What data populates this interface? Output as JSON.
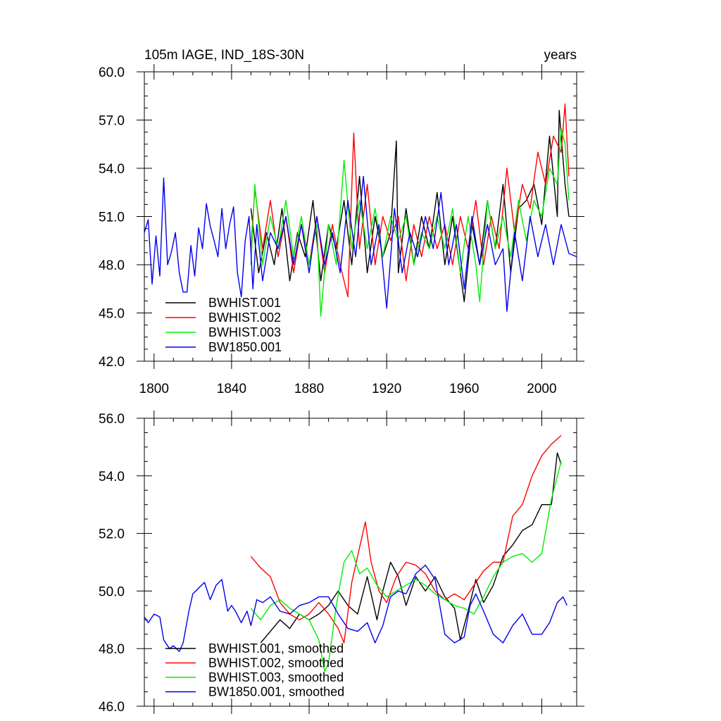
{
  "chart_data": [
    {
      "type": "line",
      "title": "105m IAGE, IND_18S-30N",
      "right_title": "years",
      "xlim": [
        1795,
        2018
      ],
      "ylim": [
        42,
        60
      ],
      "x_ticks": [
        1800,
        1840,
        1880,
        1920,
        1960,
        2000
      ],
      "x_tick_labels": [
        "1800",
        "1840",
        "1880",
        "1920",
        "1960",
        "2000"
      ],
      "y_ticks": [
        42,
        45,
        48,
        51,
        54,
        57,
        60
      ],
      "y_tick_labels": [
        "42.0",
        "45.0",
        "48.0",
        "51.0",
        "54.0",
        "57.0",
        "60.0"
      ],
      "legend_position": "bottom-left",
      "series": [
        {
          "name": "BWHIST.001",
          "color": "#000000",
          "x": [
            1850,
            1854,
            1858,
            1862,
            1866,
            1870,
            1874,
            1878,
            1882,
            1886,
            1890,
            1894,
            1898,
            1902,
            1906,
            1910,
            1914,
            1918,
            1922,
            1925,
            1926,
            1930,
            1934,
            1938,
            1942,
            1946,
            1950,
            1954,
            1958,
            1960,
            1964,
            1968,
            1972,
            1976,
            1980,
            1984,
            1988,
            1992,
            1996,
            2000,
            2004,
            2008,
            2009,
            2012,
            2014
          ],
          "y": [
            51.5,
            47.5,
            50,
            48,
            51.5,
            47,
            50,
            48.5,
            52,
            47,
            50.5,
            49,
            52,
            48,
            53.5,
            47.5,
            51,
            48.5,
            50,
            55.7,
            47.5,
            51.5,
            48,
            51,
            49,
            52.5,
            48,
            51,
            47.5,
            45.7,
            50.5,
            48,
            52,
            49,
            53,
            47.5,
            51.5,
            52,
            53,
            50.5,
            56,
            51,
            57.6,
            53,
            51
          ]
        },
        {
          "name": "BWHIST.002",
          "color": "#ff0000",
          "x": [
            1850,
            1852,
            1856,
            1860,
            1864,
            1868,
            1872,
            1876,
            1880,
            1884,
            1888,
            1892,
            1896,
            1900,
            1903,
            1906,
            1910,
            1914,
            1918,
            1922,
            1926,
            1930,
            1934,
            1938,
            1942,
            1946,
            1950,
            1954,
            1958,
            1962,
            1966,
            1970,
            1974,
            1978,
            1982,
            1986,
            1990,
            1994,
            1998,
            2002,
            2006,
            2010,
            2012,
            2014
          ],
          "y": [
            49,
            52.7,
            49,
            52,
            48.5,
            51,
            47.5,
            50.5,
            48,
            51,
            47.5,
            50.5,
            48,
            46,
            56.2,
            49,
            53,
            48,
            51,
            49.5,
            51,
            47,
            50.5,
            48.5,
            51,
            49,
            50.5,
            48,
            51,
            49,
            52,
            48,
            51,
            49,
            54,
            50,
            53,
            51.5,
            55,
            53,
            56,
            55,
            58,
            53.5
          ]
        },
        {
          "name": "BWHIST.003",
          "color": "#00ee00",
          "x": [
            1850,
            1852,
            1856,
            1860,
            1864,
            1868,
            1872,
            1876,
            1880,
            1884,
            1886,
            1890,
            1894,
            1898,
            1902,
            1906,
            1910,
            1914,
            1918,
            1922,
            1926,
            1930,
            1934,
            1938,
            1942,
            1946,
            1950,
            1954,
            1958,
            1962,
            1966,
            1968,
            1972,
            1976,
            1980,
            1984,
            1988,
            1992,
            1996,
            2000,
            2004,
            2008,
            2010,
            2012,
            2014
          ],
          "y": [
            48,
            53,
            48,
            51,
            49,
            52,
            48.5,
            51,
            48,
            50.5,
            44.8,
            50.5,
            48,
            54.5,
            49,
            52,
            49,
            51.5,
            48.5,
            51,
            49.5,
            51,
            48,
            50,
            49,
            51,
            49,
            51.5,
            47.5,
            51,
            48,
            45.7,
            52,
            49,
            51,
            48.5,
            52,
            49.5,
            52,
            51,
            54,
            53,
            56.5,
            55.5,
            52
          ]
        },
        {
          "name": "BW1850.001",
          "color": "#0000ee",
          "x": [
            1795,
            1797,
            1799,
            1801,
            1803,
            1805,
            1807,
            1809,
            1811,
            1813,
            1815,
            1817,
            1819,
            1821,
            1823,
            1825,
            1827,
            1829,
            1831,
            1833,
            1835,
            1837,
            1839,
            1841,
            1843,
            1845,
            1847,
            1849,
            1851,
            1853,
            1856,
            1860,
            1864,
            1868,
            1872,
            1876,
            1880,
            1884,
            1888,
            1892,
            1896,
            1900,
            1904,
            1908,
            1912,
            1916,
            1920,
            1924,
            1928,
            1932,
            1936,
            1940,
            1944,
            1948,
            1952,
            1956,
            1960,
            1964,
            1968,
            1972,
            1976,
            1980,
            1982,
            1986,
            1990,
            1994,
            1998,
            2002,
            2006,
            2010,
            2014,
            2018
          ],
          "y": [
            50,
            50.8,
            46.8,
            49.8,
            47.3,
            53.4,
            48,
            48.8,
            50,
            47.5,
            46.3,
            46.3,
            49.2,
            47.3,
            50.3,
            49,
            51.8,
            50.4,
            49.5,
            48.5,
            51.5,
            49,
            50.5,
            51.6,
            47.5,
            46,
            49.5,
            51,
            46.5,
            50.5,
            47,
            50,
            49,
            51,
            48,
            50.5,
            47.5,
            51,
            48,
            50,
            47.5,
            52,
            48.5,
            53.5,
            48,
            50.5,
            45.3,
            51.5,
            47.5,
            50,
            48.5,
            51,
            49,
            52.5,
            48,
            50.5,
            46.5,
            51,
            48,
            50.5,
            48,
            49,
            45.1,
            50,
            47,
            51,
            48.5,
            50.5,
            48,
            50.5,
            48.7,
            48.5
          ]
        }
      ]
    },
    {
      "type": "line",
      "xlim": [
        1795,
        2018
      ],
      "ylim": [
        46,
        56
      ],
      "x_ticks": [
        1800,
        1840,
        1880,
        1920,
        1960,
        2000
      ],
      "y_ticks": [
        46,
        48,
        50,
        52,
        54,
        56
      ],
      "y_tick_labels": [
        "46.0",
        "48.0",
        "50.0",
        "52.0",
        "54.0",
        "56.0"
      ],
      "legend_position": "bottom-left",
      "series": [
        {
          "name": "BWHIST.001, smoothed",
          "color": "#000000",
          "x": [
            1855,
            1860,
            1865,
            1870,
            1875,
            1880,
            1885,
            1890,
            1895,
            1900,
            1905,
            1910,
            1915,
            1918,
            1922,
            1926,
            1930,
            1935,
            1940,
            1945,
            1950,
            1955,
            1958,
            1962,
            1966,
            1970,
            1975,
            1980,
            1985,
            1990,
            1995,
            2000,
            2005,
            2008,
            2010
          ],
          "y": [
            48.2,
            48.6,
            49,
            48.7,
            49.2,
            49,
            49.2,
            49.5,
            50,
            49.5,
            49.2,
            50.5,
            49,
            50,
            51,
            50.5,
            49.5,
            50.5,
            50,
            50.5,
            49.8,
            49.4,
            48.3,
            49.3,
            50.4,
            49.6,
            50.2,
            51.2,
            51.6,
            52.1,
            52.3,
            53,
            53,
            54.8,
            54.4
          ]
        },
        {
          "name": "BWHIST.002, smoothed",
          "color": "#ff0000",
          "x": [
            1850,
            1855,
            1860,
            1865,
            1870,
            1875,
            1880,
            1885,
            1890,
            1895,
            1898,
            1902,
            1906,
            1909,
            1912,
            1916,
            1920,
            1925,
            1930,
            1935,
            1940,
            1945,
            1950,
            1955,
            1960,
            1965,
            1970,
            1975,
            1980,
            1985,
            1990,
            1995,
            2000,
            2005,
            2010
          ],
          "y": [
            51.2,
            50.8,
            50.5,
            49.6,
            49.2,
            49,
            49.2,
            49.6,
            49.2,
            48.7,
            48.2,
            50.3,
            51.5,
            52.4,
            51,
            50,
            49.6,
            50.5,
            51,
            50.9,
            50.6,
            50,
            49.7,
            49.9,
            49.7,
            50.2,
            50.7,
            51,
            51,
            52.6,
            53,
            54,
            54.7,
            55.1,
            55.4
          ]
        },
        {
          "name": "BWHIST.003, smoothed",
          "color": "#00ee00",
          "x": [
            1850,
            1855,
            1860,
            1865,
            1870,
            1875,
            1880,
            1885,
            1888,
            1890,
            1894,
            1898,
            1902,
            1906,
            1910,
            1915,
            1920,
            1925,
            1930,
            1935,
            1940,
            1945,
            1950,
            1955,
            1960,
            1965,
            1970,
            1975,
            1980,
            1985,
            1990,
            1995,
            2000,
            2005,
            2010
          ],
          "y": [
            49.4,
            49,
            49.5,
            49.7,
            49.4,
            49.2,
            49,
            48.3,
            47.2,
            47.5,
            49.5,
            51,
            51.4,
            50.6,
            50.8,
            50.2,
            49.8,
            50,
            50.2,
            50.4,
            50.2,
            49.9,
            49.7,
            49.5,
            49.4,
            49.2,
            49.8,
            50.5,
            51,
            51.2,
            51.3,
            51,
            51.3,
            53.2,
            54.5
          ]
        },
        {
          "name": "BW1850.001, smoothed",
          "color": "#0000ee",
          "x": [
            1795,
            1797,
            1800,
            1803,
            1805,
            1808,
            1810,
            1813,
            1815,
            1818,
            1820,
            1823,
            1826,
            1829,
            1832,
            1835,
            1838,
            1840,
            1842,
            1845,
            1848,
            1850,
            1853,
            1856,
            1860,
            1865,
            1870,
            1875,
            1880,
            1885,
            1890,
            1895,
            1900,
            1905,
            1910,
            1914,
            1918,
            1922,
            1926,
            1930,
            1935,
            1940,
            1945,
            1950,
            1955,
            1960,
            1963,
            1966,
            1970,
            1975,
            1980,
            1985,
            1990,
            1995,
            2000,
            2004,
            2008,
            2011,
            2013
          ],
          "y": [
            49.1,
            48.9,
            49.2,
            49.1,
            48.3,
            48,
            48.1,
            47.9,
            48.2,
            49.3,
            49.9,
            50.1,
            50.3,
            49.7,
            50.2,
            50.4,
            49.3,
            49.5,
            49.3,
            48.9,
            49.3,
            48.8,
            49.7,
            49.6,
            49.8,
            49.3,
            49.2,
            49.5,
            49.6,
            49.8,
            49.8,
            49.2,
            48.7,
            48.6,
            48.9,
            48.2,
            48.8,
            49.8,
            50,
            49.9,
            50.6,
            50.9,
            50.4,
            48.5,
            48.2,
            48.4,
            49.5,
            49.9,
            49.3,
            48.5,
            48.2,
            48.8,
            49.2,
            48.5,
            48.5,
            48.9,
            49.6,
            49.8,
            49.5
          ]
        }
      ]
    }
  ]
}
